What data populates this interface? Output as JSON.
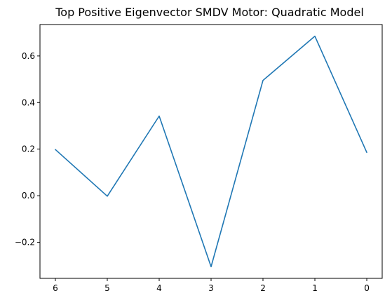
{
  "chart_data": {
    "type": "line",
    "title": "Top Positive Eigenvector SMDV Motor: Quadratic Model",
    "xlabel": "",
    "ylabel": "",
    "categories": [
      "6",
      "5",
      "4",
      "3",
      "2",
      "1",
      "0"
    ],
    "series": [
      {
        "values": [
          0.198,
          -0.002,
          0.342,
          -0.305,
          0.495,
          0.685,
          0.186
        ],
        "color": "#1f77b4"
      }
    ],
    "ylim": [
      -0.355,
      0.735
    ],
    "yticks": [
      -0.2,
      0.0,
      0.2,
      0.4,
      0.6
    ],
    "ytick_labels": [
      "−0.2",
      "0.0",
      "0.2",
      "0.4",
      "0.6"
    ],
    "grid": false,
    "legend": "none"
  }
}
